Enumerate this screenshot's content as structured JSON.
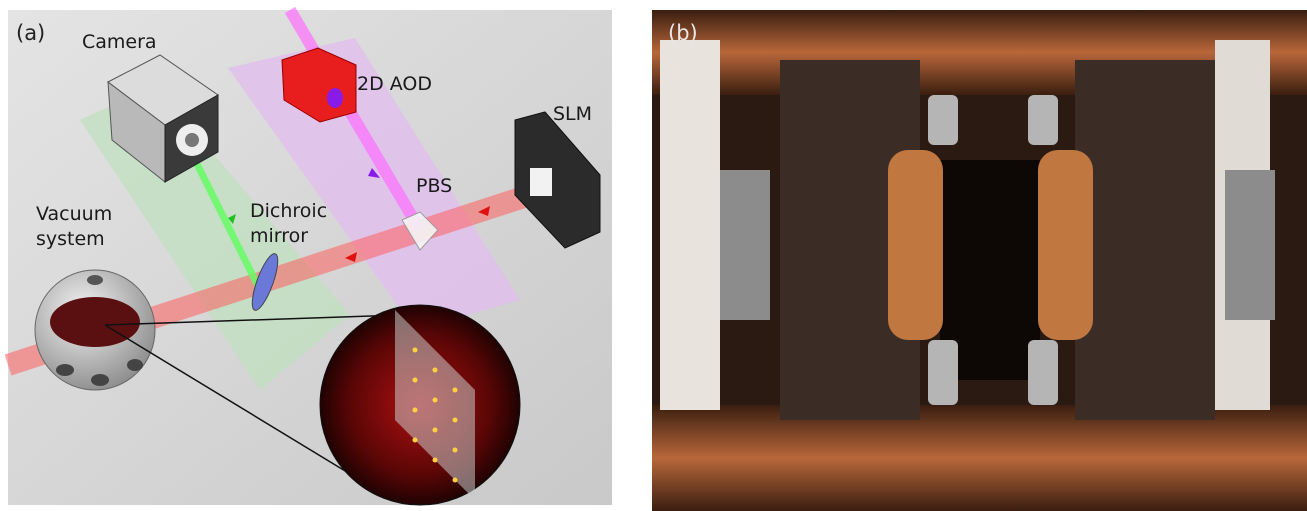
{
  "panel_a": {
    "tag": "(a)",
    "camera": "Camera",
    "aod": "2D AOD",
    "slm": "SLM",
    "pbs": "PBS",
    "dichroic_mirror": [
      "Dichroic",
      "mirror"
    ],
    "vacuum_system": [
      "Vacuum",
      "system"
    ]
  },
  "panel_b": {
    "tag": "(b)"
  }
}
